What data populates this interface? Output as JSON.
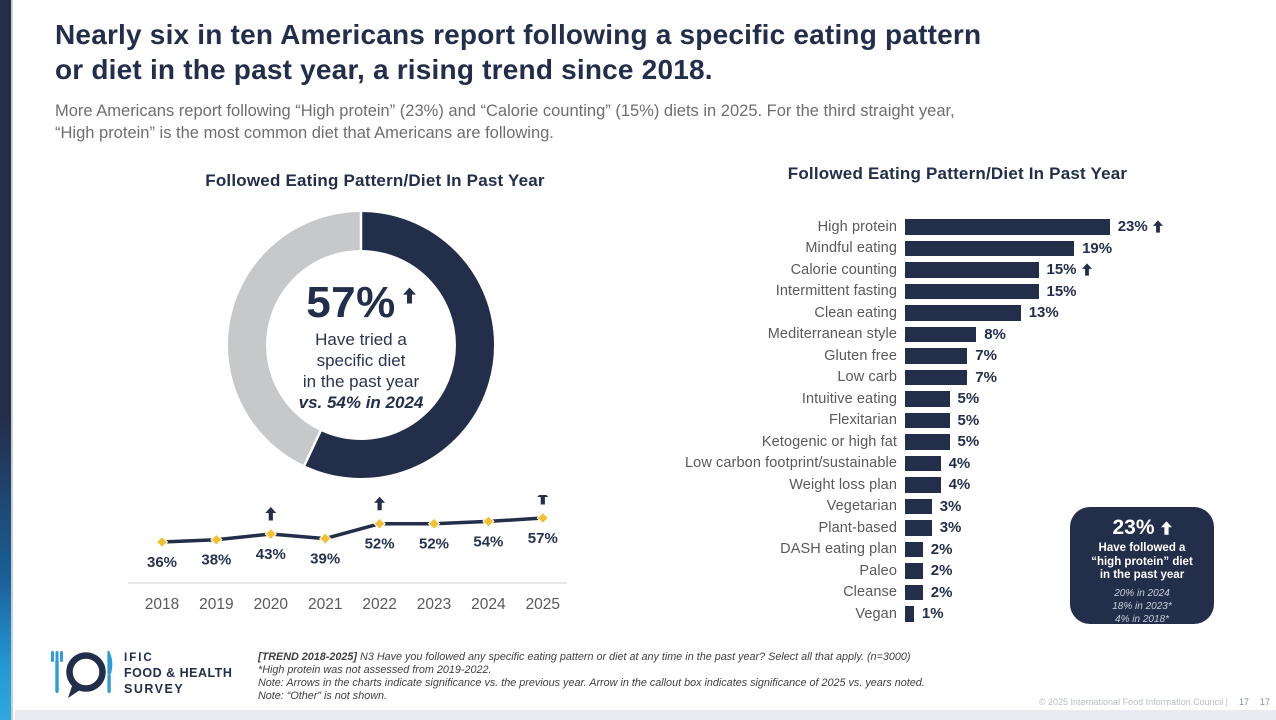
{
  "page": {
    "title": "Nearly six in ten Americans report following a specific eating pattern\nor diet in the past year, a rising trend since 2018.",
    "subtitle": "More Americans report following “High protein” (23%) and “Calorie counting” (15%) diets in 2025. For the third straight year,\n“High protein” is the most common diet that Americans are following.",
    "copyright": "© 2025 International Food Information Council |",
    "page_numbers": [
      "17",
      "17"
    ]
  },
  "colors": {
    "navy": "#232E4A",
    "donut_gray": "#C7C8CA",
    "gold": "#F3C02F",
    "accent_blue": "#2F9CD6",
    "label_gray": "#58595B",
    "axis_gray": "#D8DBE2"
  },
  "donut_section": {
    "title": "Followed Eating Pattern/Diet In Past Year",
    "center_value": "57%",
    "center_text": "Have tried a\nspecific diet\nin the past year",
    "center_comparison": "vs. 54% in 2024"
  },
  "bar_section": {
    "title": "Followed Eating Pattern/Diet In Past Year"
  },
  "callout": {
    "value": "23%",
    "text": "Have followed a\n“high protein” diet\nin the past year",
    "notes": "20% in 2024\n18% in 2023*\n4% in 2018*"
  },
  "logo": {
    "line1": "IFIC",
    "line2": "FOOD & HEALTH",
    "line3": "SURVEY"
  },
  "footnotes": {
    "trend_label": "[TREND 2018-2025]",
    "line1_rest": " N3 Have you followed any specific eating pattern or diet at any time in the past year? Select all that apply. (n=3000)",
    "line2": "*High protein was not assessed from 2019-2022.",
    "line3": "Note: Arrows in the charts indicate significance vs. the previous year. Arrow in the callout box indicates significance of 2025 vs. years noted.",
    "line4": "Note: “Other” is not shown."
  },
  "chart_data": [
    {
      "type": "pie",
      "subtype": "donut",
      "title": "Followed Eating Pattern/Diet In Past Year",
      "value": 57,
      "remainder": 43,
      "center_label": "57%",
      "center_sublabel": "Have tried a specific diet in the past year",
      "comparison": "vs. 54% in 2024",
      "significance_arrow": true
    },
    {
      "type": "line",
      "title": "Followed eating pattern/diet trend 2018-2025",
      "x": [
        "2018",
        "2019",
        "2020",
        "2021",
        "2022",
        "2023",
        "2024",
        "2025"
      ],
      "values": [
        36,
        38,
        43,
        39,
        52,
        52,
        54,
        57
      ],
      "labels": [
        "36%",
        "38%",
        "43%",
        "39%",
        "52%",
        "52%",
        "54%",
        "57%"
      ],
      "significant_indices": [
        2,
        4,
        7
      ],
      "ylim": [
        36,
        57
      ],
      "grid": false,
      "marker": "diamond"
    },
    {
      "type": "bar",
      "orientation": "horizontal",
      "title": "Followed Eating Pattern/Diet In Past Year",
      "categories": [
        "High protein",
        "Mindful eating",
        "Calorie counting",
        "Intermittent fasting",
        "Clean eating",
        "Mediterranean style",
        "Gluten free",
        "Low carb",
        "Intuitive eating",
        "Flexitarian",
        "Ketogenic or high fat",
        "Low carbon footprint/sustainable",
        "Weight loss plan",
        "Vegetarian",
        "Plant-based",
        "DASH eating plan",
        "Paleo",
        "Cleanse",
        "Vegan"
      ],
      "values": [
        23,
        19,
        15,
        15,
        13,
        8,
        7,
        7,
        5,
        5,
        5,
        4,
        4,
        3,
        3,
        2,
        2,
        2,
        1
      ],
      "labels": [
        "23%",
        "19%",
        "15%",
        "15%",
        "13%",
        "8%",
        "7%",
        "7%",
        "5%",
        "5%",
        "5%",
        "4%",
        "4%",
        "3%",
        "3%",
        "2%",
        "2%",
        "2%",
        "1%"
      ],
      "significant": [
        "High protein",
        "Calorie counting"
      ],
      "xlim": [
        0,
        23
      ]
    }
  ]
}
